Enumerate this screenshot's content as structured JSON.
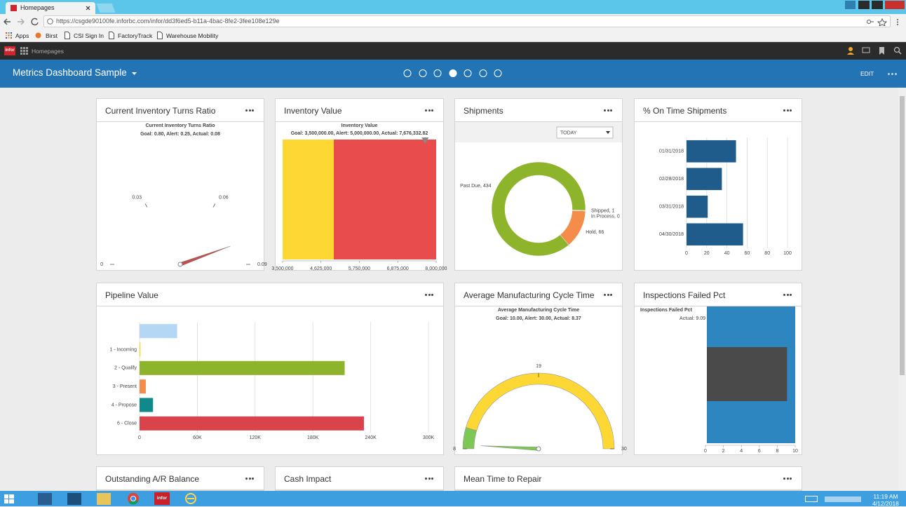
{
  "browser": {
    "tab": "Homepages",
    "url": "https://csgde90100fe.inforbc.com/infor/dd3f6ed5-b11a-4bac-8fe2-3fee108e129e",
    "bookmarks": [
      "Apps",
      "Birst",
      "CSI Sign In",
      "FactoryTrack",
      "Warehouse Mobility"
    ]
  },
  "app": {
    "logo": "infor",
    "nav": "Homepages",
    "dashboard": "Metrics Dashboard Sample",
    "edit": "EDIT"
  },
  "cards": [
    {
      "title": "Current Inventory Turns Ratio",
      "chart_data": {
        "type": "gauge",
        "title": "Current Inventory Turns Ratio",
        "subtitle": "Goal: 0.80, Alert: 0.25, Actual: 0.08",
        "subtitle_color": "#e03c3c",
        "value": 0.08,
        "ylim": [
          0,
          0.09
        ],
        "yticks": [
          0,
          0.03,
          0.06,
          0.09
        ],
        "needle_color": "#c0504d"
      }
    },
    {
      "title": "Inventory Value",
      "chart_data": {
        "type": "bullet",
        "title": "Inventory Value",
        "subtitle": "Goal: 3,500,000.00, Alert: 5,000,000.00, Actual: 7,676,332.82",
        "subtitle_color": "#e03c3c",
        "alert": 5000000,
        "value": 7676332.82,
        "xlim": [
          3500000,
          8000000
        ],
        "xticks": [
          {
            "value": 3500000,
            "label": "3,500,000"
          },
          {
            "value": 4625000,
            "label": "4,625,000"
          },
          {
            "value": 5750000,
            "label": "5,750,000"
          },
          {
            "value": 6875000,
            "label": "6,875,000"
          },
          {
            "value": 8000000,
            "label": "8,000,000"
          }
        ],
        "colors": [
          "#fdd835",
          "#e84c4c"
        ],
        "marker_color": "#8a8a8a"
      }
    },
    {
      "title": "Shipments",
      "chart_data": {
        "type": "donut",
        "control": "TODAY",
        "labels": [
          "Past Due, 434",
          "Shipped, 1",
          "In Process, 0",
          "Hold, 66"
        ],
        "values": [
          434,
          1,
          0,
          66
        ],
        "colors": [
          "#8db42a",
          "#1f77b4",
          "#7f7f7f",
          "#f58d4a"
        ]
      }
    },
    {
      "title": "% On Time Shipments",
      "chart_data": {
        "type": "hbar",
        "categories": [
          "01/31/2018",
          "02/28/2018",
          "03/31/2018",
          "04/30/2018"
        ],
        "values": [
          49,
          35,
          21,
          56
        ],
        "color": "#1f5c8b",
        "xlim": [
          0,
          100
        ],
        "xticks": [
          0,
          20,
          40,
          60,
          80,
          100
        ],
        "grid": true
      }
    },
    {
      "title": "Pipeline Value",
      "chart_data": {
        "type": "hbar",
        "categories": [
          null,
          "1 - Incoming",
          "2 - Qualify",
          "3 - Present",
          "4 - Propose",
          "6 - Close"
        ],
        "values": [
          39000,
          1000,
          213000,
          6500,
          14000,
          233000
        ],
        "colors": [
          "#b3d7f5",
          "#fdd835",
          "#8db42a",
          "#f58d4a",
          "#10898b",
          "#d9434a"
        ],
        "xlim": [
          0,
          300000
        ],
        "xticks": [
          0,
          {
            "value": 60000,
            "label": "60K"
          },
          {
            "value": 120000,
            "label": "120K"
          },
          {
            "value": 180000,
            "label": "180K"
          },
          {
            "value": 240000,
            "label": "240K"
          },
          {
            "value": 300000,
            "label": "300K"
          }
        ],
        "grid": true
      }
    },
    {
      "title": "Average Manufacturing Cycle Time",
      "chart_data": {
        "type": "gauge",
        "title": "Average Manufacturing Cycle Time",
        "subtitle": "Goal: 10.00, Alert: 30.00, Actual: 8.37",
        "subtitle_color": "#6cc04a",
        "value": 8.37,
        "ylim": [
          8,
          30
        ],
        "yticks": [
          8,
          19,
          30
        ],
        "bands": [
          {
            "to": 10,
            "color": "#7dc855"
          },
          {
            "to": 30,
            "color": "#fdd835"
          }
        ],
        "needle_color": "#7dc855"
      }
    },
    {
      "title": "Inspections Failed Pct",
      "chart_data": {
        "type": "meter",
        "title": "Inspections Failed Pct",
        "subtitle": "Actual: 9.09",
        "value": 9.09,
        "xlim": [
          0,
          10
        ],
        "xticks": [
          0,
          2,
          4,
          6,
          8,
          10
        ],
        "colors": [
          "#2e86c1",
          "#4a4a4a"
        ]
      }
    },
    {
      "title": "Outstanding A/R Balance"
    },
    {
      "title": "Cash Impact"
    },
    {
      "title": "Mean Time to Repair"
    }
  ],
  "taskbar": {
    "time": "11:19 AM",
    "date": "4/12/2018"
  }
}
